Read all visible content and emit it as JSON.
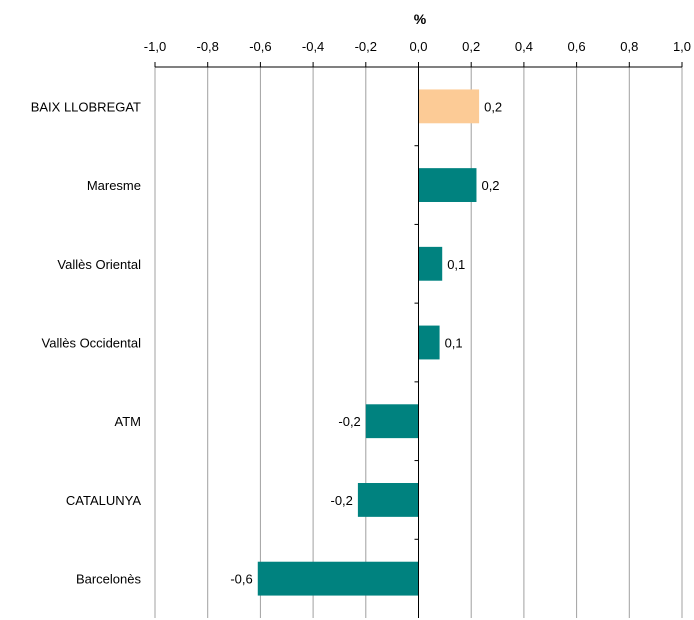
{
  "chart_data": {
    "type": "bar",
    "orientation": "horizontal",
    "title": "",
    "xlabel": "%",
    "ylabel": "",
    "xlim": [
      -1.0,
      1.0
    ],
    "x_ticks": [
      "-1,0",
      "-0,8",
      "-0,6",
      "-0,4",
      "-0,2",
      "0,0",
      "0,2",
      "0,4",
      "0,6",
      "0,8",
      "1,0"
    ],
    "x_tick_values": [
      -1.0,
      -0.8,
      -0.6,
      -0.4,
      -0.2,
      0.0,
      0.2,
      0.4,
      0.6,
      0.8,
      1.0
    ],
    "x_axis_position": "top",
    "grid": "vertical",
    "legend": "none",
    "categories": [
      "BAIX LLOBREGAT",
      "Maresme",
      "Vallès Oriental",
      "Vallès Occidental",
      "ATM",
      "CATALUNYA",
      "Barcelonès"
    ],
    "values": [
      0.23,
      0.22,
      0.09,
      0.08,
      -0.2,
      -0.23,
      -0.61
    ],
    "data_labels": [
      "0,2",
      "0,2",
      "0,1",
      "0,1",
      "-0,2",
      "-0,2",
      "-0,6"
    ],
    "colors": {
      "highlight": "#FCCB96",
      "default": "#00827F",
      "grid": "#A0A0A0",
      "axis": "#000000"
    },
    "highlight_index": 0
  }
}
